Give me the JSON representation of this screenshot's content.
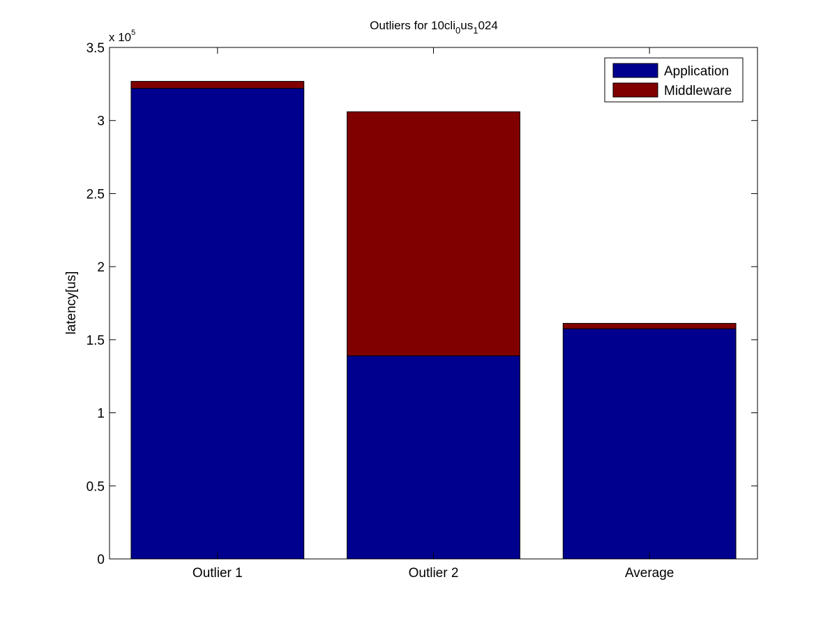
{
  "chart_data": {
    "type": "bar",
    "stacked": true,
    "title": {
      "prefix": "Outliers for 10cli",
      "sub1": "0",
      "middle": "us",
      "sub2": "1",
      "suffix": "024"
    },
    "ylabel": "latency[us]",
    "xlabel": "",
    "ylim": [
      0,
      350000
    ],
    "y_scale_label": {
      "base": "x 10",
      "exponent": "5"
    },
    "y_ticks": [
      0,
      50000,
      100000,
      150000,
      200000,
      250000,
      300000,
      350000
    ],
    "y_tick_labels": [
      "0",
      "0.5",
      "1",
      "1.5",
      "2",
      "2.5",
      "3",
      "3.5"
    ],
    "categories": [
      "Outlier 1",
      "Outlier 2",
      "Average"
    ],
    "series": [
      {
        "name": "Application",
        "values": [
          322000,
          139000,
          157500
        ],
        "color": "#00008f"
      },
      {
        "name": "Middleware",
        "values": [
          4800,
          167000,
          3700
        ],
        "color": "#800000"
      }
    ],
    "legend_position": "top-right",
    "grid": false
  }
}
